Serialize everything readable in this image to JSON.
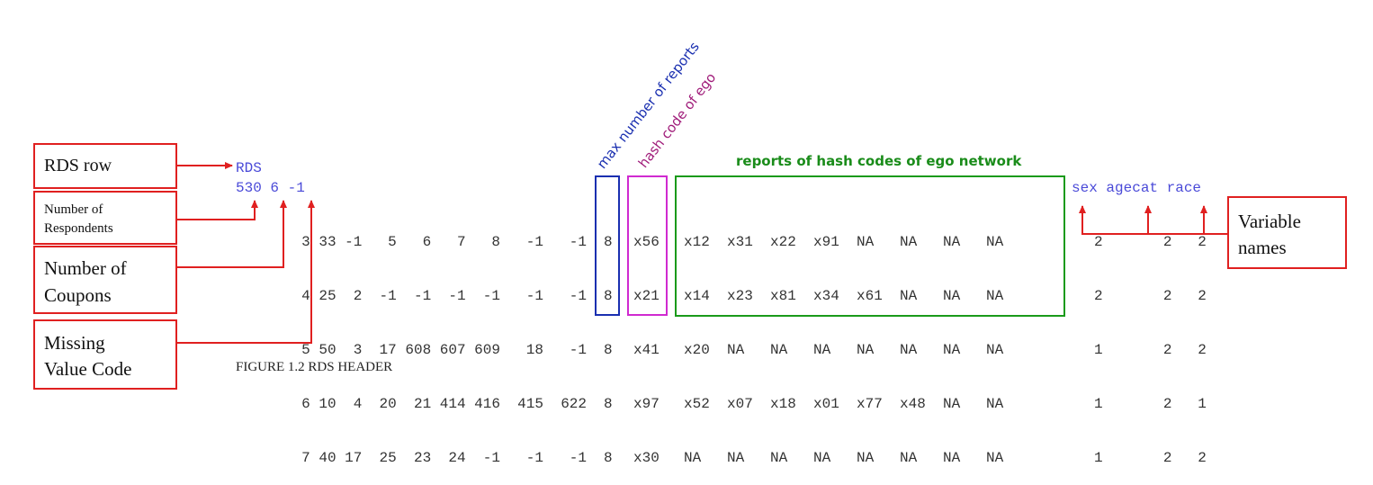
{
  "labels": {
    "rds_row": "RDS row",
    "num_respondents": [
      "Number of",
      "Respondents"
    ],
    "num_coupons": [
      "Number of",
      "Coupons"
    ],
    "missing_value": [
      "Missing",
      "Value Code"
    ],
    "variable_names": [
      "Variable",
      "names"
    ]
  },
  "annotations": {
    "max_reports": "max number of reports",
    "hash_ego": "hash code of ego",
    "ego_network": "reports of hash codes of ego network"
  },
  "caption": "FIGURE 1.2 RDS HEADER",
  "header": {
    "rds": "RDS",
    "line2": "530 6 -1",
    "varnames": "sex agecat race"
  },
  "rows": [
    {
      "left": "3 33 -1   5   6   7   8   -1   -1",
      "max": "8",
      "ego": "x56",
      "net": "x12  x31  x22  x91  NA   NA   NA   NA",
      "vars": "2       2   2"
    },
    {
      "left": "4 25  2  -1  -1  -1  -1   -1   -1",
      "max": "8",
      "ego": "x21",
      "net": "x14  x23  x81  x34  x61  NA   NA   NA",
      "vars": "2       2   2"
    },
    {
      "left": "5 50  3  17 608 607 609   18   -1",
      "max": "8",
      "ego": "x41",
      "net": "x20  NA   NA   NA   NA   NA   NA   NA",
      "vars": "1       2   2"
    },
    {
      "left": "6 10  4  20  21 414 416  415  622",
      "max": "8",
      "ego": "x97",
      "net": "x52  x07  x18  x01  x77  x48  NA   NA",
      "vars": "1       2   1"
    },
    {
      "left": "7 40 17  25  23  24  -1   -1   -1",
      "max": "8",
      "ego": "x30",
      "net": "NA   NA   NA   NA   NA   NA   NA   NA",
      "vars": "1       2   2"
    }
  ],
  "colors": {
    "red": "#e02020",
    "blue": "#1a2fb0",
    "magenta": "#d02ad0",
    "green": "#1a9a1a",
    "mono_blue": "#4a4ad8"
  }
}
